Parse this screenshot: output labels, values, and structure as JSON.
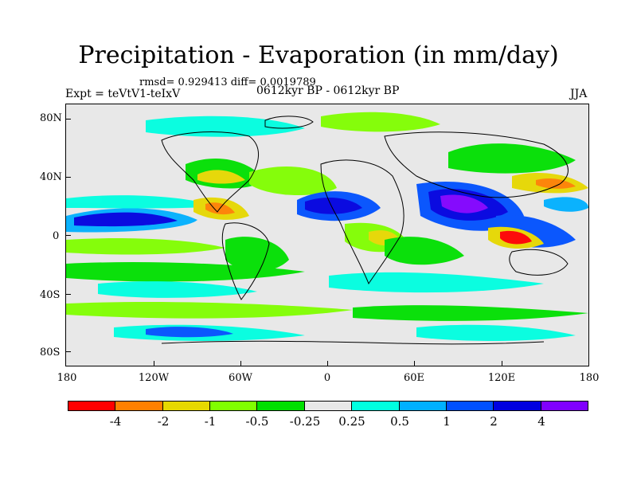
{
  "title": "Precipitation - Evaporation (in mm/day)",
  "stats": "rmsd= 0.929413 diff= 0.0019789",
  "experiment": "Expt = teVtV1-teIxV",
  "period": "0612kyr BP - 0612kyr BP",
  "season": "JJA",
  "map": {
    "y_axis_labels": [
      "80N",
      "40N",
      "0",
      "40S",
      "80S"
    ],
    "x_axis_labels": [
      "180",
      "120W",
      "60W",
      "0",
      "60E",
      "120E",
      "180"
    ],
    "land_color": "#e8e8e8"
  },
  "colorbar": {
    "labels": [
      "-4",
      "-2",
      "-1",
      "-0.5",
      "-0.25",
      "0.25",
      "0.5",
      "1",
      "2",
      "4"
    ],
    "colors": [
      "#ff0000",
      "#ff8000",
      "#e6d800",
      "#80ff00",
      "#00e000",
      "#e8e8e8",
      "#00ffe0",
      "#00b0ff",
      "#0050ff",
      "#0000e0",
      "#8000ff"
    ]
  }
}
